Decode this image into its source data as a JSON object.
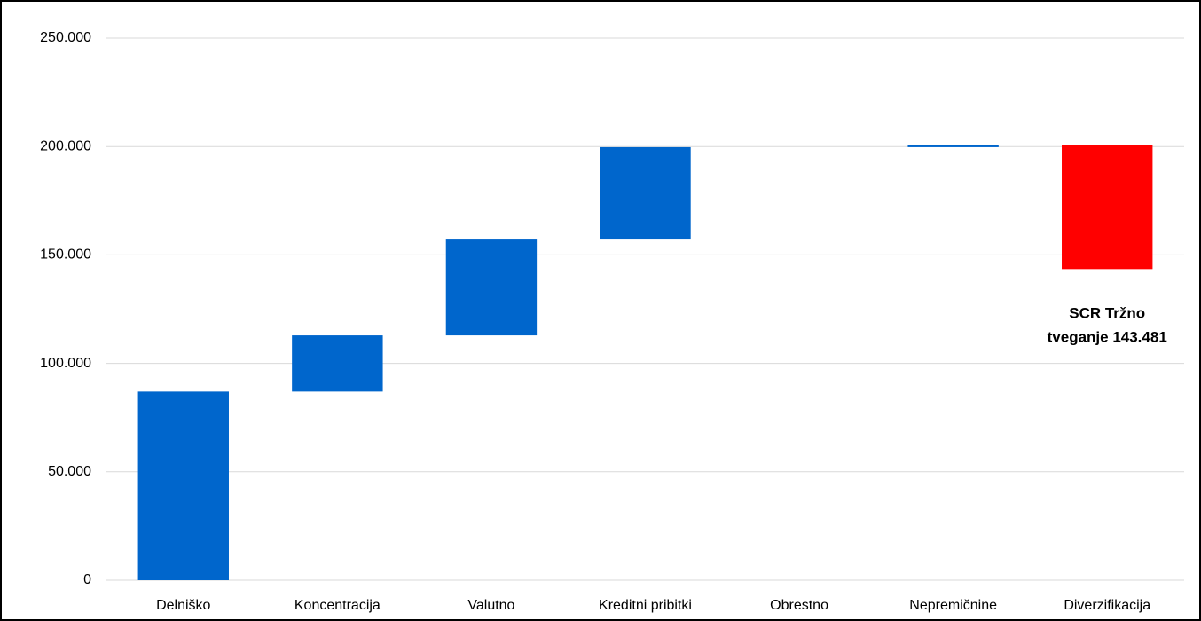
{
  "chart_data": {
    "type": "waterfall",
    "categories": [
      "Delniško",
      "Koncentracija",
      "Valutno",
      "Kreditni pribitki",
      "Obrestno",
      "Nepremičnine",
      "Diverzifikacija"
    ],
    "values": [
      87000,
      25900,
      44600,
      42200,
      0,
      800,
      -57019
    ],
    "color": "#0066cc",
    "negative_color": "#ff0000",
    "ylim": [
      0,
      250000
    ],
    "yticks": [
      0,
      {
        "value": 50000,
        "label": "50.000"
      },
      {
        "value": 100000,
        "label": "100.000"
      },
      {
        "value": 150000,
        "label": "150.000"
      },
      {
        "value": 200000,
        "label": "200.000"
      },
      {
        "value": 250000,
        "label": "250.000"
      }
    ],
    "grid": true,
    "annotation": [
      "SCR Tržno",
      "tveganje 143.481"
    ]
  }
}
